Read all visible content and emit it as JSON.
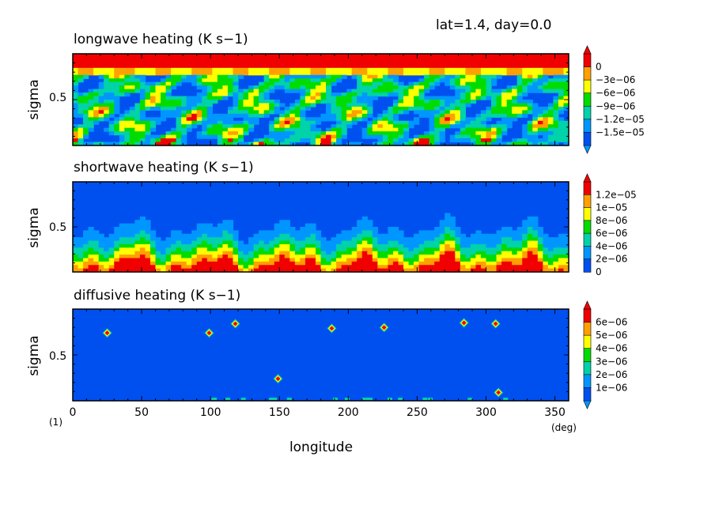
{
  "header": {
    "info": "lat=1.4, day=0.0"
  },
  "x_axis": {
    "label": "longitude",
    "unit": "(deg)",
    "range": [
      0,
      360
    ],
    "ticks": [
      "0",
      "50",
      "100",
      "150",
      "200",
      "250",
      "300",
      "350"
    ],
    "tick_values": [
      0,
      50,
      100,
      150,
      200,
      250,
      300,
      350
    ],
    "scale_note": "(1)"
  },
  "colors": {
    "levels": [
      "#0050f0",
      "#0096ff",
      "#00d2aa",
      "#00dc00",
      "#ffff00",
      "#ffa000",
      "#f00000"
    ]
  },
  "chart_data": [
    {
      "type": "heatmap",
      "title": "longwave heating (K s−1)",
      "xlabel": "",
      "ylabel": "sigma",
      "xlim": [
        0,
        360
      ],
      "ylim": [
        0,
        1
      ],
      "ytick_label": "0.5",
      "ytick_value": 0.5,
      "colorbar": {
        "labels": [
          "0",
          "−3e−06",
          "−6e−06",
          "−9e−06",
          "−1.2e−05",
          "−1.5e−05"
        ],
        "values": [
          0,
          -3e-06,
          -6e-06,
          -9e-06,
          -1.2e-05,
          -1.5e-05
        ],
        "extend": "both"
      },
      "pattern": "noisy"
    },
    {
      "type": "heatmap",
      "title": "shortwave heating (K s−1)",
      "xlabel": "",
      "ylabel": "sigma",
      "xlim": [
        0,
        360
      ],
      "ylim": [
        0,
        1
      ],
      "ytick_label": "0.5",
      "ytick_value": 0.5,
      "colorbar": {
        "labels": [
          "1.2e−05",
          "1e−05",
          "8e−06",
          "6e−06",
          "4e−06",
          "2e−06",
          "0"
        ],
        "values": [
          1.2e-05,
          1e-05,
          8e-06,
          6e-06,
          4e-06,
          2e-06,
          0
        ],
        "extend": "max"
      },
      "pattern": "bottom-layer"
    },
    {
      "type": "heatmap",
      "title": "diffusive heating (K s−1)",
      "xlabel": "longitude",
      "ylabel": "sigma",
      "xlim": [
        0,
        360
      ],
      "ylim": [
        0,
        1
      ],
      "ytick_label": "0.5",
      "ytick_value": 0.5,
      "colorbar": {
        "labels": [
          "6e−06",
          "5e−06",
          "4e−06",
          "3e−06",
          "2e−06",
          "1e−06"
        ],
        "values": [
          6e-06,
          5e-06,
          4e-06,
          3e-06,
          2e-06,
          1e-06
        ],
        "extend": "both"
      },
      "pattern": "spots",
      "spots": [
        {
          "lon": 25,
          "sigma": 0.74
        },
        {
          "lon": 99,
          "sigma": 0.74
        },
        {
          "lon": 118,
          "sigma": 0.84
        },
        {
          "lon": 149,
          "sigma": 0.24
        },
        {
          "lon": 188,
          "sigma": 0.79
        },
        {
          "lon": 226,
          "sigma": 0.8
        },
        {
          "lon": 284,
          "sigma": 0.85
        },
        {
          "lon": 307,
          "sigma": 0.84
        },
        {
          "lon": 309,
          "sigma": 0.09
        }
      ]
    }
  ]
}
